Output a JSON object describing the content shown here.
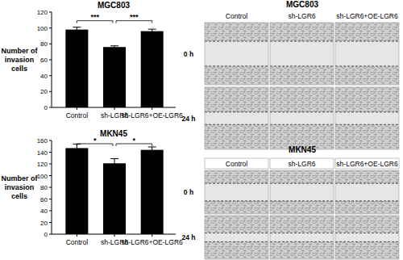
{
  "chart_data": [
    {
      "type": "bar",
      "title": "MGC803",
      "y_label": "Number of invasion cells",
      "categories": [
        "Control",
        "sh-LGR6",
        "sh-LGR6+OE-LGR6"
      ],
      "values": [
        98,
        76,
        96
      ],
      "error": [
        3,
        1.5,
        2.5
      ],
      "color": "#000000",
      "ylim": [
        0,
        120
      ],
      "yticks": [
        0,
        20,
        40,
        60,
        80,
        100,
        120
      ],
      "significance": [
        {
          "pair": [
            "Control",
            "sh-LGR6"
          ],
          "label": "***"
        },
        {
          "pair": [
            "sh-LGR6",
            "sh-LGR6+OE-LGR6"
          ],
          "label": "***"
        }
      ]
    },
    {
      "type": "bar",
      "title": "MKN45",
      "y_label": "Number of invasion cells",
      "categories": [
        "Control",
        "sh-LGR6",
        "sh-LGR6+OE-LGR6"
      ],
      "values": [
        147,
        121,
        144
      ],
      "error": [
        7,
        8,
        5
      ],
      "color": "#000000",
      "ylim": [
        0,
        160
      ],
      "yticks": [
        0,
        20,
        40,
        60,
        80,
        100,
        120,
        140,
        160
      ],
      "significance": [
        {
          "pair": [
            "Control",
            "sh-LGR6"
          ],
          "label": "*"
        },
        {
          "pair": [
            "sh-LGR6",
            "sh-LGR6+OE-LGR6"
          ],
          "label": "*"
        }
      ]
    }
  ],
  "wound_panels": [
    {
      "title": "MGC803",
      "columns": [
        "Control",
        "sh-LGR6",
        "sh-LGR6+OE-LGR6"
      ],
      "rows": [
        "0 h",
        "24 h"
      ]
    },
    {
      "title": "MKN45",
      "columns": [
        "Control",
        "sh-LGR6",
        "sh-LGR6+OE-LGR6"
      ],
      "rows": [
        "0 h",
        "24 h"
      ]
    }
  ]
}
